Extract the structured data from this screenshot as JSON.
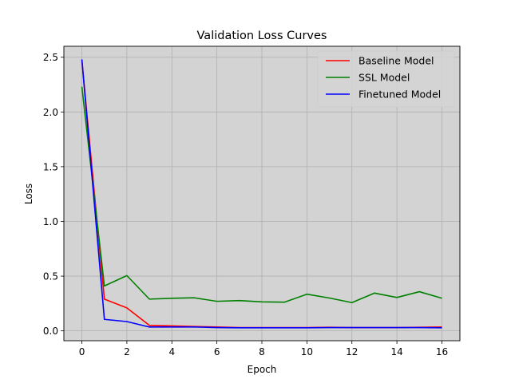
{
  "chart_data": {
    "type": "line",
    "title": "Validation Loss Curves",
    "xlabel": "Epoch",
    "ylabel": "Loss",
    "xlim": [
      -0.8,
      16.8
    ],
    "ylim": [
      -0.09,
      2.6
    ],
    "xticks": [
      0,
      2,
      4,
      6,
      8,
      10,
      12,
      14,
      16
    ],
    "xtick_labels": [
      "0",
      "2",
      "4",
      "6",
      "8",
      "10",
      "12",
      "14",
      "16"
    ],
    "yticks": [
      0.0,
      0.5,
      1.0,
      1.5,
      2.0,
      2.5
    ],
    "ytick_labels": [
      "0.0",
      "0.5",
      "1.0",
      "1.5",
      "2.0",
      "2.5"
    ],
    "grid": true,
    "legend_position": "top-right",
    "plot_background": "#d3d3d3",
    "x": [
      0,
      1,
      2,
      3,
      4,
      5,
      6,
      7,
      8,
      9,
      10,
      11,
      12,
      13,
      14,
      15,
      16
    ],
    "series": [
      {
        "name": "Baseline Model",
        "color": "#ff0000",
        "values": [
          2.47,
          0.29,
          0.21,
          0.05,
          0.045,
          0.04,
          0.035,
          0.03,
          0.03,
          0.03,
          0.03,
          0.033,
          0.03,
          0.03,
          0.03,
          0.033,
          0.035
        ]
      },
      {
        "name": "SSL Model",
        "color": "#008000",
        "values": [
          2.23,
          0.41,
          0.505,
          0.29,
          0.298,
          0.302,
          0.27,
          0.277,
          0.265,
          0.262,
          0.335,
          0.3,
          0.258,
          0.345,
          0.305,
          0.358,
          0.298
        ]
      },
      {
        "name": "Finetuned Model",
        "color": "#0000ff",
        "values": [
          2.48,
          0.105,
          0.085,
          0.035,
          0.035,
          0.035,
          0.03,
          0.028,
          0.028,
          0.028,
          0.028,
          0.03,
          0.03,
          0.03,
          0.03,
          0.03,
          0.028
        ]
      }
    ]
  }
}
